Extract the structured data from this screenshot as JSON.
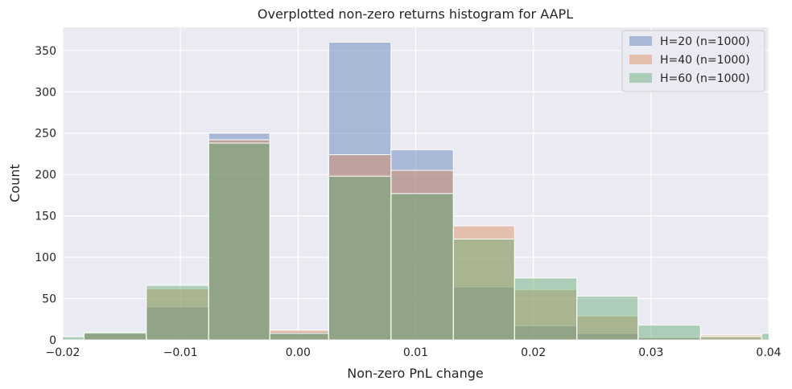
{
  "chart_data": {
    "type": "bar",
    "subtype": "overlapping-histogram",
    "title": "Overplotted non-zero returns histogram for AAPL",
    "xlabel": "Non-zero PnL change",
    "ylabel": "Count",
    "xlim": [
      -0.02,
      0.04
    ],
    "ylim": [
      0,
      378
    ],
    "x_ticks": [
      -0.02,
      -0.01,
      0.0,
      0.01,
      0.02,
      0.03,
      0.04
    ],
    "x_tick_labels": [
      "−0.02",
      "−0.01",
      "0.00",
      "0.01",
      "0.02",
      "0.03",
      "0.04"
    ],
    "y_ticks": [
      0,
      50,
      100,
      150,
      200,
      250,
      300,
      350
    ],
    "y_tick_labels": [
      "0",
      "50",
      "100",
      "150",
      "200",
      "250",
      "300",
      "350"
    ],
    "grid": true,
    "legend_position": "top-right",
    "series": [
      {
        "name": "H=20 (n=1000)",
        "color": "#4c72b0",
        "bins": [
          {
            "x0": -0.0182,
            "x1": -0.0129,
            "value": 9
          },
          {
            "x0": -0.0129,
            "x1": -0.0076,
            "value": 40
          },
          {
            "x0": -0.0076,
            "x1": -0.0024,
            "value": 250
          },
          {
            "x0": -0.0024,
            "x1": 0.0026,
            "value": 10
          },
          {
            "x0": 0.0026,
            "x1": 0.0079,
            "value": 360
          },
          {
            "x0": 0.0079,
            "x1": 0.0132,
            "value": 230
          },
          {
            "x0": 0.0132,
            "x1": 0.0184,
            "value": 64
          },
          {
            "x0": 0.0184,
            "x1": 0.0237,
            "value": 17
          },
          {
            "x0": 0.0237,
            "x1": 0.0289,
            "value": 8
          },
          {
            "x0": 0.0289,
            "x1": 0.0342,
            "value": 3
          }
        ]
      },
      {
        "name": "H=40 (n=1000)",
        "color": "#dd8452",
        "bins": [
          {
            "x0": -0.0182,
            "x1": -0.0129,
            "value": 8
          },
          {
            "x0": -0.0129,
            "x1": -0.0076,
            "value": 62
          },
          {
            "x0": -0.0076,
            "x1": -0.0024,
            "value": 242
          },
          {
            "x0": -0.0024,
            "x1": 0.0026,
            "value": 12
          },
          {
            "x0": 0.0026,
            "x1": 0.0079,
            "value": 224
          },
          {
            "x0": 0.0079,
            "x1": 0.0132,
            "value": 205
          },
          {
            "x0": 0.0132,
            "x1": 0.0184,
            "value": 138
          },
          {
            "x0": 0.0184,
            "x1": 0.0237,
            "value": 61
          },
          {
            "x0": 0.0237,
            "x1": 0.0289,
            "value": 29
          },
          {
            "x0": 0.0289,
            "x1": 0.0342,
            "value": 3
          },
          {
            "x0": 0.0342,
            "x1": 0.0394,
            "value": 6
          }
        ]
      },
      {
        "name": "H=60 (n=1000)",
        "color": "#55a868",
        "bins": [
          {
            "x0": -0.0235,
            "x1": -0.0182,
            "value": 4
          },
          {
            "x0": -0.0182,
            "x1": -0.0129,
            "value": 9
          },
          {
            "x0": -0.0129,
            "x1": -0.0076,
            "value": 66
          },
          {
            "x0": -0.0076,
            "x1": -0.0024,
            "value": 238
          },
          {
            "x0": -0.0024,
            "x1": 0.0026,
            "value": 8
          },
          {
            "x0": 0.0026,
            "x1": 0.0079,
            "value": 198
          },
          {
            "x0": 0.0079,
            "x1": 0.0132,
            "value": 177
          },
          {
            "x0": 0.0132,
            "x1": 0.0184,
            "value": 122
          },
          {
            "x0": 0.0184,
            "x1": 0.0237,
            "value": 75
          },
          {
            "x0": 0.0237,
            "x1": 0.0289,
            "value": 53
          },
          {
            "x0": 0.0289,
            "x1": 0.0342,
            "value": 18
          },
          {
            "x0": 0.0342,
            "x1": 0.0394,
            "value": 4
          },
          {
            "x0": 0.0394,
            "x1": 0.0447,
            "value": 8
          }
        ]
      }
    ]
  }
}
